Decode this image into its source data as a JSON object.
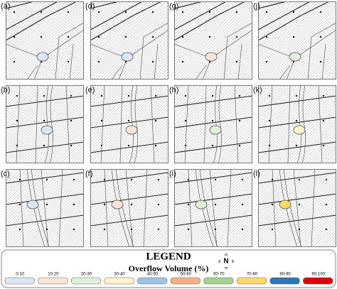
{
  "panels": [
    {
      "label": "(a)",
      "color": "#dce6f2"
    },
    {
      "label": "(b)",
      "color": "#dce6f2"
    },
    {
      "label": "(c)",
      "color": "#dce6f2"
    },
    {
      "label": "(d)",
      "color": "#dce6f2"
    },
    {
      "label": "(e)",
      "color": "#fbe4d5"
    },
    {
      "label": "(f)",
      "color": "#fbe4d5"
    },
    {
      "label": "(g)",
      "color": "#fbe4d5"
    },
    {
      "label": "(h)",
      "color": "#e2efd9"
    },
    {
      "label": "(i)",
      "color": "#e2efd9"
    },
    {
      "label": "(j)",
      "color": "#e2efd9"
    },
    {
      "label": "(k)",
      "color": "#fff2cc"
    },
    {
      "label": "(l)",
      "color": "#ffd966"
    }
  ],
  "legend": {
    "title": "LEGEND",
    "subtitle": "Overflow Volume (%)",
    "north": "N",
    "items": [
      {
        "label": "0-10",
        "color": "#dce6f2"
      },
      {
        "label": "10-20",
        "color": "#fbe4d5"
      },
      {
        "label": "20-30",
        "color": "#e2efd9"
      },
      {
        "label": "30-40",
        "color": "#fff2cc"
      },
      {
        "label": "40-50",
        "color": "#9dc3e6"
      },
      {
        "label": "50-60",
        "color": "#f4b183"
      },
      {
        "label": "60-70",
        "color": "#a9d18e"
      },
      {
        "label": "70-80",
        "color": "#ffd966"
      },
      {
        "label": "80-90",
        "color": "#2e75b6"
      },
      {
        "label": "90-100",
        "color": "#e00000"
      }
    ]
  }
}
